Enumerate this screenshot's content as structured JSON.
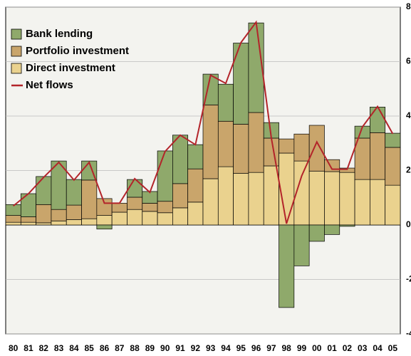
{
  "chart_data": {
    "type": "stacked_bar_line",
    "categories": [
      "80",
      "81",
      "82",
      "83",
      "84",
      "85",
      "86",
      "87",
      "88",
      "89",
      "90",
      "91",
      "92",
      "93",
      "94",
      "95",
      "96",
      "97",
      "98",
      "99",
      "00",
      "01",
      "02",
      "03",
      "04",
      "05"
    ],
    "series": [
      {
        "name": "Direct investment",
        "color": "#ead28e",
        "values": [
          0.1,
          0.1,
          0.08,
          0.15,
          0.2,
          0.23,
          0.35,
          0.47,
          0.57,
          0.5,
          0.45,
          0.63,
          0.84,
          1.7,
          2.14,
          1.9,
          1.93,
          2.17,
          2.64,
          2.35,
          1.98,
          1.96,
          1.93,
          1.67,
          1.67,
          1.46
        ]
      },
      {
        "name": "Portfolio investment",
        "color": "#c9a56b",
        "values": [
          0.25,
          0.2,
          0.67,
          0.42,
          0.53,
          1.42,
          0.62,
          0.33,
          0.45,
          0.3,
          0.42,
          0.89,
          1.22,
          2.71,
          1.67,
          1.8,
          2.2,
          1.02,
          0.52,
          0.99,
          1.68,
          0.44,
          0.16,
          1.52,
          1.72,
          1.39
        ]
      },
      {
        "name": "Bank lending",
        "color": "#8fa96b",
        "values": [
          0.4,
          0.85,
          1.03,
          1.78,
          0.94,
          0.7,
          -0.15,
          0,
          0.65,
          0.43,
          1.85,
          1.78,
          0.89,
          1.13,
          1.36,
          2.98,
          3.29,
          0.57,
          -3.03,
          -1.5,
          -0.6,
          -0.35,
          -0.05,
          0.44,
          0.94,
          0.52
        ]
      },
      {
        "name": "Net flows",
        "color": "#b3242a",
        "type": "line",
        "values": [
          0.7,
          1.15,
          1.75,
          2.3,
          1.65,
          2.3,
          0.8,
          0.8,
          1.7,
          1.2,
          2.7,
          3.3,
          2.95,
          5.5,
          5.2,
          6.7,
          7.45,
          3.2,
          0.05,
          1.8,
          3.05,
          2.05,
          2.05,
          3.6,
          4.35,
          3.35
        ]
      }
    ],
    "ylim": [
      -4,
      8
    ],
    "yticks": [
      8,
      6,
      4,
      2,
      0,
      -2,
      -4
    ],
    "grid": true,
    "legend": "upper left"
  }
}
